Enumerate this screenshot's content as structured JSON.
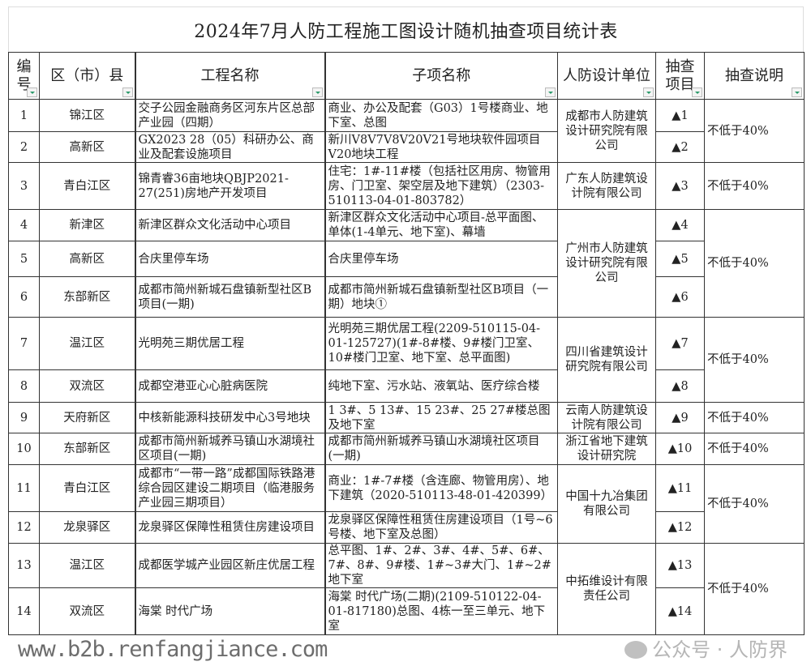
{
  "title": "2024年7月人防工程施工图设计随机抽查项目统计表",
  "headers": [
    "编号",
    "区（市）县",
    "工程名称",
    "子项名称",
    "人防设计单位",
    "抽查项目",
    "抽查说明"
  ],
  "rows": [
    {
      "no": "1",
      "district": "锦江区",
      "project": "交子公园金融商务区河东片区总部产业园（四期）",
      "subitem": "商业、办公及配套（G03）1号楼商业、地下室、总图",
      "item": "▲1"
    },
    {
      "no": "2",
      "district": "高新区",
      "project": "GX2023 28（05）科研办公、商业及配套设施项目",
      "subitem": "新川V8V7V8V20V21号地块软件园项目V20地块工程",
      "item": "▲2"
    },
    {
      "no": "3",
      "district": "青白江区",
      "project": "锦青睿36亩地块QBJP2021-27(251)房地产开发项目",
      "subitem": "住宅：1#-11#楼（包括社区用房、物管用房、门卫室、架空层及地下建筑）（2303-510113-04-01-803782）",
      "item": "▲3"
    },
    {
      "no": "4",
      "district": "新津区",
      "project": "新津区群众文化活动中心项目",
      "subitem": "新津区群众文化活动中心项目-总平面图、单体(1-4单元、地下室)、幕墙",
      "item": "▲4"
    },
    {
      "no": "5",
      "district": "高新区",
      "project": "合庆里停车场",
      "subitem": "合庆里停车场",
      "item": "▲5"
    },
    {
      "no": "6",
      "district": "东部新区",
      "project": "成都市简州新城石盘镇新型社区B项目(一期)",
      "subitem": "成都市简州新城石盘镇新型社区B项目（一期）地块①",
      "item": "▲6"
    },
    {
      "no": "7",
      "district": "温江区",
      "project": "光明苑三期优居工程",
      "subitem": "光明苑三期优居工程(2209-510115-04-01-125727)(1#-8#楼、9#楼门卫室、10#楼门卫室、地下室、总平面图)",
      "item": "▲7"
    },
    {
      "no": "8",
      "district": "双流区",
      "project": "成都空港亚心心脏病医院",
      "subitem": "纯地下室、污水站、液氧站、医疗综合楼",
      "item": "▲8"
    },
    {
      "no": "9",
      "district": "天府新区",
      "project": "中核新能源科技研发中心3号地块",
      "subitem": "1 3#、5 13#、15 23#、25 27#楼总图及地下室",
      "item": "▲9"
    },
    {
      "no": "10",
      "district": "东部新区",
      "project": "成都市简州新城养马镇山水湖境社区项目(一期)",
      "subitem": "成都市简州新城养马镇山水湖境社区项目(一期)",
      "item": "▲10"
    },
    {
      "no": "11",
      "district": "青白江区",
      "project": "成都市“一带一路”成都国际铁路港综合园区建设二期项目（临港服务产业园三期项目）",
      "subitem": "商业：1#-7#楼（含连廊、物管用房）、地下建筑（2020-510113-48-01-420399）",
      "item": "▲11"
    },
    {
      "no": "12",
      "district": "龙泉驿区",
      "project": "龙泉驿区保障性租赁住房建设项目",
      "subitem": "龙泉驿区保障性租赁住房建设项目（1号~6号楼、地下室及总图）",
      "item": "▲12"
    },
    {
      "no": "13",
      "district": "温江区",
      "project": "成都医学城产业园区新庄优居工程",
      "subitem": "总平图、1#、2#、3#、4#、5#、6#、7#、8#、9#楼、1#~3#大门、1#~2#地下室",
      "item": "▲13"
    },
    {
      "no": "14",
      "district": "双流区",
      "project": "海棠 时代广场",
      "subitem": "海棠 时代广场(二期)(2109-510122-04-01-817180)总图、4栋一至三单元、地下室",
      "item": "▲14"
    }
  ],
  "groups": [
    {
      "unit": "成都市人防建筑设计研究院有限公司",
      "note": "不低于40%",
      "row_count": 2
    },
    {
      "unit": "广东人防建筑设计院有限公司",
      "note": "不低于40%",
      "row_count": 1
    },
    {
      "unit": "广州市人防建筑设计研究院有限公司",
      "note": "不低于40%",
      "row_count": 3
    },
    {
      "unit": "四川省建筑设计研究院有限公司",
      "note": "不低于40%",
      "row_count": 2
    },
    {
      "unit": "云南人防建筑设计院有限公司",
      "note": "不低于40%",
      "row_count": 1
    },
    {
      "unit": "浙江省地下建筑设计研究院",
      "note": "不低于40%",
      "row_count": 1
    },
    {
      "unit": "中国十九冶集团有限公司",
      "note": "不低于40%",
      "row_count": 2
    },
    {
      "unit": "中拓维设计有限责任公司",
      "note": "不低于40%",
      "row_count": 2
    }
  ],
  "watermarks": {
    "site": "www.b2b.renfangjiance.com",
    "account": "公众号 · 人防界"
  },
  "colors": {
    "filter_arrow": "#2a9a6a",
    "border": "#333333"
  }
}
